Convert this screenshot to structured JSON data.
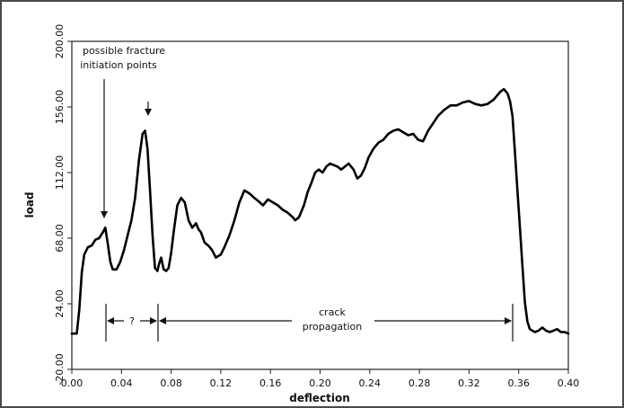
{
  "chart_data": {
    "type": "line",
    "xlabel": "deflection",
    "ylabel": "load",
    "xlim": [
      0.0,
      0.4
    ],
    "ylim": [
      -20.0,
      200.0
    ],
    "x_ticks": [
      "0.00",
      "0.04",
      "0.08",
      "0.12",
      "0.16",
      "0.20",
      "0.24",
      "0.28",
      "0.32",
      "0.36",
      "0.40"
    ],
    "y_ticks": [
      "-20.00",
      "24.00",
      "68.00",
      "112.00",
      "156.00",
      "200.00"
    ],
    "grid": false,
    "series": [
      {
        "x": [
          0.0,
          0.004,
          0.006,
          0.008,
          0.01,
          0.013,
          0.016,
          0.019,
          0.022,
          0.025,
          0.027,
          0.029,
          0.031,
          0.033,
          0.036,
          0.039,
          0.042,
          0.045,
          0.048,
          0.051,
          0.054,
          0.057,
          0.059,
          0.061,
          0.063,
          0.065,
          0.067,
          0.069,
          0.07,
          0.072,
          0.074,
          0.076,
          0.078,
          0.08,
          0.082,
          0.085,
          0.088,
          0.091,
          0.094,
          0.097,
          0.1,
          0.102,
          0.104,
          0.107,
          0.11,
          0.113,
          0.116,
          0.12,
          0.123,
          0.127,
          0.131,
          0.135,
          0.139,
          0.143,
          0.147,
          0.15,
          0.154,
          0.158,
          0.162,
          0.166,
          0.17,
          0.174,
          0.178,
          0.18,
          0.183,
          0.187,
          0.19,
          0.193,
          0.196,
          0.199,
          0.202,
          0.205,
          0.208,
          0.211,
          0.214,
          0.217,
          0.22,
          0.223,
          0.227,
          0.23,
          0.233,
          0.236,
          0.239,
          0.243,
          0.247,
          0.251,
          0.255,
          0.259,
          0.263,
          0.267,
          0.271,
          0.275,
          0.279,
          0.283,
          0.287,
          0.291,
          0.295,
          0.3,
          0.305,
          0.31,
          0.315,
          0.32,
          0.325,
          0.33,
          0.335,
          0.34,
          0.345,
          0.348,
          0.351,
          0.353,
          0.355,
          0.357,
          0.359,
          0.361,
          0.363,
          0.365,
          0.367,
          0.369,
          0.371,
          0.373,
          0.376,
          0.379,
          0.382,
          0.385,
          0.388,
          0.391,
          0.394,
          0.397,
          0.4
        ],
        "y": [
          4,
          4,
          20,
          45,
          57,
          62,
          63,
          67,
          68,
          72,
          75,
          64,
          52,
          47,
          47,
          52,
          60,
          70,
          80,
          95,
          120,
          138,
          140,
          128,
          100,
          70,
          48,
          46,
          50,
          55,
          47,
          46,
          48,
          58,
          72,
          90,
          95,
          92,
          80,
          75,
          78,
          74,
          72,
          65,
          63,
          60,
          55,
          57,
          62,
          70,
          80,
          92,
          100,
          98,
          95,
          93,
          90,
          94,
          92,
          90,
          87,
          85,
          82,
          80,
          82,
          90,
          99,
          105,
          112,
          114,
          112,
          116,
          118,
          117,
          116,
          114,
          116,
          118,
          114,
          108,
          110,
          115,
          122,
          128,
          132,
          134,
          138,
          140,
          141,
          139,
          137,
          138,
          134,
          133,
          140,
          145,
          150,
          154,
          157,
          157,
          159,
          160,
          158,
          157,
          158,
          161,
          166,
          168,
          165,
          160,
          150,
          125,
          100,
          75,
          50,
          25,
          12,
          7,
          6,
          5,
          6,
          8,
          6,
          5,
          6,
          7,
          5,
          5,
          4
        ]
      }
    ],
    "annotations": {
      "fracture_label_line1": "possible fracture",
      "fracture_label_line2": "initiation points",
      "question_label": "?",
      "crack_label_line1": "crack",
      "crack_label_line2": "propagation"
    }
  }
}
